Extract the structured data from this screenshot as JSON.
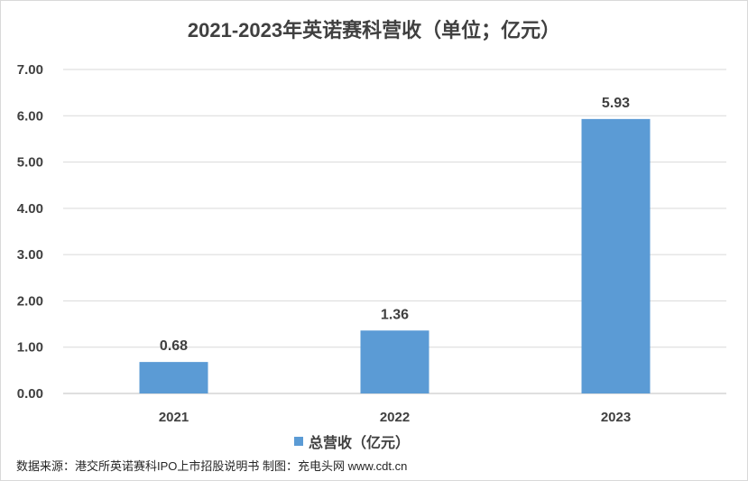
{
  "chart_data": {
    "type": "bar",
    "title": "2021-2023年英诺赛科营收（单位；亿元）",
    "categories": [
      "2021",
      "2022",
      "2023"
    ],
    "series": [
      {
        "name": "总营收（亿元）",
        "values": [
          0.68,
          1.36,
          5.93
        ],
        "color": "#5b9bd5"
      }
    ],
    "data_labels": [
      "0.68",
      "1.36",
      "5.93"
    ],
    "yticks": [
      "0.00",
      "1.00",
      "2.00",
      "3.00",
      "4.00",
      "5.00",
      "6.00",
      "7.00"
    ],
    "ylim": [
      0,
      7
    ],
    "grid": true,
    "legend_position": "bottom",
    "xlabel": "",
    "ylabel": ""
  },
  "source_note": "数据来源：港交所英诺赛科IPO上市招股说明书 制图：充电头网 www.cdt.cn"
}
